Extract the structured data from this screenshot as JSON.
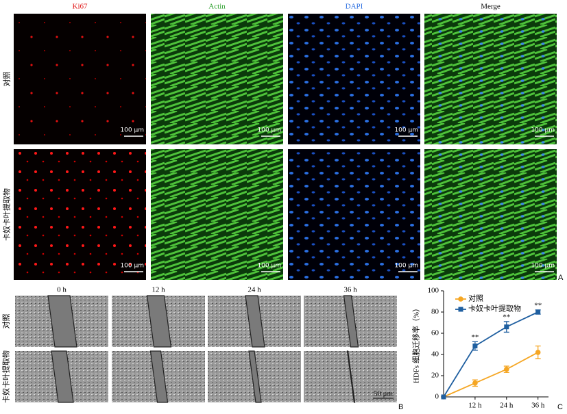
{
  "panel_a": {
    "label": "A",
    "columns": [
      "Ki67",
      "Actin",
      "DAPI",
      "Merge"
    ],
    "rows": [
      "对照",
      "卡奴卡叶提取物"
    ],
    "scale_bars": [
      "100 μm",
      "100 μm",
      "100 μm",
      "100 μm",
      "100 μm",
      "100 μm",
      "100 μm",
      "100 μm"
    ]
  },
  "panel_b": {
    "label": "B",
    "columns": [
      "0 h",
      "12 h",
      "24 h",
      "36 h"
    ],
    "rows": [
      "对照",
      "卡奴卡叶提取物"
    ],
    "scale_bar": "50 μm"
  },
  "chart_data": {
    "type": "line",
    "label": "C",
    "ylabel": "HDFs 细胞迁移率（%）",
    "x": [
      0,
      12,
      24,
      36
    ],
    "xlim": [
      0,
      40
    ],
    "xticks": [
      {
        "value": 12,
        "label": "12 h"
      },
      {
        "value": 24,
        "label": "24 h"
      },
      {
        "value": 36,
        "label": "36 h"
      }
    ],
    "ylim": [
      0,
      100
    ],
    "yticks": [
      0,
      20,
      40,
      60,
      80,
      100
    ],
    "series": [
      {
        "name": "对照",
        "color": "#f5a623",
        "marker": "circle",
        "values": [
          0,
          13,
          26,
          42
        ],
        "errors": [
          0,
          3,
          3,
          6
        ]
      },
      {
        "name": "卡奴卡叶提取物",
        "color": "#1f5fa0",
        "marker": "square",
        "values": [
          0,
          48,
          66,
          80
        ],
        "errors": [
          0,
          4,
          5,
          2
        ],
        "annotations": [
          null,
          "**",
          "**",
          "**"
        ]
      }
    ]
  }
}
